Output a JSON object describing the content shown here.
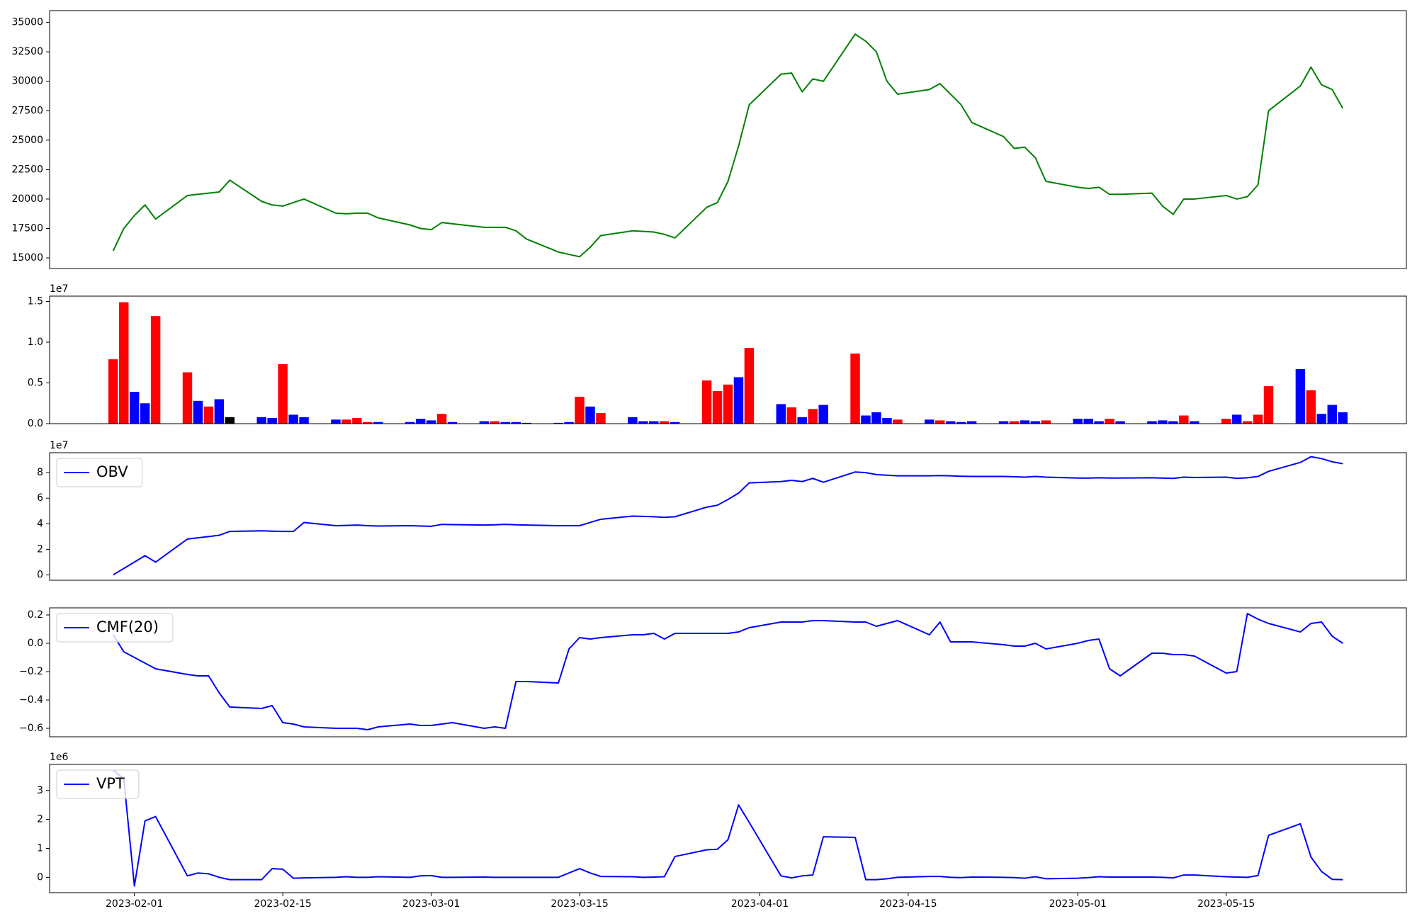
{
  "chart_data": [
    {
      "type": "line",
      "x": [
        "2023-01-30",
        "2023-01-31",
        "2023-02-01",
        "2023-02-02",
        "2023-02-03",
        "2023-02-06",
        "2023-02-07",
        "2023-02-08",
        "2023-02-09",
        "2023-02-10",
        "2023-02-13",
        "2023-02-14",
        "2023-02-15",
        "2023-02-16",
        "2023-02-17",
        "2023-02-20",
        "2023-02-21",
        "2023-02-22",
        "2023-02-23",
        "2023-02-24",
        "2023-02-27",
        "2023-02-28",
        "2023-03-01",
        "2023-03-02",
        "2023-03-03",
        "2023-03-06",
        "2023-03-07",
        "2023-03-08",
        "2023-03-09",
        "2023-03-10",
        "2023-03-13",
        "2023-03-14",
        "2023-03-15",
        "2023-03-16",
        "2023-03-17",
        "2023-03-20",
        "2023-03-21",
        "2023-03-22",
        "2023-03-23",
        "2023-03-24",
        "2023-03-27",
        "2023-03-28",
        "2023-03-29",
        "2023-03-30",
        "2023-03-31",
        "2023-04-03",
        "2023-04-04",
        "2023-04-05",
        "2023-04-06",
        "2023-04-07",
        "2023-04-10",
        "2023-04-11",
        "2023-04-12",
        "2023-04-13",
        "2023-04-14",
        "2023-04-17",
        "2023-04-18",
        "2023-04-19",
        "2023-04-20",
        "2023-04-21",
        "2023-04-24",
        "2023-04-25",
        "2023-04-26",
        "2023-04-27",
        "2023-04-28",
        "2023-05-01",
        "2023-05-02",
        "2023-05-03",
        "2023-05-04",
        "2023-05-05",
        "2023-05-08",
        "2023-05-09",
        "2023-05-10",
        "2023-05-11",
        "2023-05-12",
        "2023-05-15",
        "2023-05-16",
        "2023-05-17",
        "2023-05-18",
        "2023-05-19",
        "2023-05-22",
        "2023-05-23",
        "2023-05-24",
        "2023-05-25",
        "2023-05-26"
      ],
      "xlim": [
        "2023-01-24",
        "2023-06-01"
      ],
      "series": [
        {
          "color": "#008000",
          "values": [
            15600,
            17500,
            18600,
            19500,
            18300,
            20300,
            20400,
            20500,
            20600,
            21600,
            19800,
            19500,
            19400,
            19700,
            20000,
            18800,
            18750,
            18800,
            18800,
            18400,
            17800,
            17500,
            17400,
            18000,
            17900,
            17600,
            17600,
            17600,
            17300,
            16600,
            15500,
            15300,
            15100,
            15900,
            16900,
            17300,
            17250,
            17200,
            17000,
            16700,
            19300,
            19700,
            21500,
            24500,
            28000,
            30600,
            30700,
            29100,
            30200,
            30000,
            34000,
            33400,
            32500,
            30000,
            28900,
            29300,
            29800,
            28900,
            28000,
            26500,
            25300,
            24300,
            24400,
            23500,
            21500,
            21000,
            20900,
            21000,
            20400,
            20400,
            20500,
            19400,
            18700,
            20000,
            20000,
            20300,
            20000,
            20200,
            21200,
            27500,
            29600,
            31200,
            29700,
            29300,
            27700
          ]
        }
      ],
      "ylim": [
        14100,
        36000
      ],
      "yticks": [
        15000,
        17500,
        20000,
        22500,
        25000,
        27500,
        30000,
        32500,
        35000
      ]
    },
    {
      "type": "bar",
      "offset_label": "1e7",
      "values": [
        0.79,
        1.49,
        0.39,
        0.25,
        1.32,
        0.63,
        0.28,
        0.21,
        0.3,
        0.08,
        0.08,
        0.07,
        0.73,
        0.11,
        0.08,
        0.05,
        0.05,
        0.07,
        0.02,
        0.02,
        0.02,
        0.06,
        0.04,
        0.12,
        0.02,
        0.03,
        0.03,
        0.02,
        0.02,
        0.01,
        0.01,
        0.02,
        0.33,
        0.21,
        0.13,
        0.08,
        0.03,
        0.03,
        0.03,
        0.02,
        0.53,
        0.4,
        0.48,
        0.57,
        0.93,
        0.24,
        0.2,
        0.08,
        0.18,
        0.23,
        0.86,
        0.1,
        0.14,
        0.07,
        0.05,
        0.05,
        0.04,
        0.03,
        0.02,
        0.03,
        0.03,
        0.03,
        0.04,
        0.03,
        0.04,
        0.06,
        0.06,
        0.03,
        0.06,
        0.03,
        0.03,
        0.04,
        0.03,
        0.1,
        0.03,
        0.06,
        0.11,
        0.03,
        0.11,
        0.46,
        0.67,
        0.41,
        0.12,
        0.23,
        0.14
      ],
      "colors": [
        "red",
        "red",
        "blue",
        "blue",
        "red",
        "red",
        "blue",
        "red",
        "blue",
        "black",
        "blue",
        "blue",
        "red",
        "blue",
        "blue",
        "blue",
        "red",
        "red",
        "red",
        "blue",
        "blue",
        "blue",
        "blue",
        "red",
        "blue",
        "blue",
        "red",
        "blue",
        "blue",
        "blue",
        "blue",
        "blue",
        "red",
        "blue",
        "red",
        "blue",
        "blue",
        "blue",
        "red",
        "blue",
        "red",
        "red",
        "red",
        "blue",
        "red",
        "blue",
        "red",
        "blue",
        "red",
        "blue",
        "red",
        "blue",
        "blue",
        "blue",
        "red",
        "blue",
        "red",
        "blue",
        "blue",
        "blue",
        "blue",
        "red",
        "blue",
        "blue",
        "red",
        "blue",
        "blue",
        "blue",
        "red",
        "blue",
        "blue",
        "blue",
        "blue",
        "red",
        "blue",
        "red",
        "blue",
        "red",
        "red",
        "red",
        "blue",
        "red",
        "blue",
        "blue",
        "blue"
      ],
      "ylim": [
        0,
        1.565
      ],
      "yticks": [
        {
          "value": 0,
          "label": "0.0"
        },
        {
          "value": 0.5,
          "label": "0.5"
        },
        {
          "value": 1.0,
          "label": "1.0"
        },
        {
          "value": 1.5,
          "label": "1.5"
        }
      ]
    },
    {
      "type": "line",
      "offset_label": "1e7",
      "legend": "upper left",
      "series": [
        {
          "name": "OBV",
          "color": "#0000ff",
          "values": [
            0,
            0.5,
            1.0,
            1.5,
            1.0,
            2.8,
            2.9,
            3.0,
            3.1,
            3.4,
            3.45,
            3.42,
            3.4,
            3.4,
            4.1,
            3.85,
            3.87,
            3.9,
            3.85,
            3.82,
            3.85,
            3.82,
            3.8,
            3.95,
            3.93,
            3.9,
            3.92,
            3.95,
            3.92,
            3.9,
            3.85,
            3.85,
            3.85,
            4.1,
            4.35,
            4.6,
            4.58,
            4.55,
            4.5,
            4.55,
            5.3,
            5.45,
            5.9,
            6.4,
            7.2,
            7.3,
            7.4,
            7.3,
            7.55,
            7.25,
            8.05,
            8.0,
            7.85,
            7.8,
            7.75,
            7.75,
            7.77,
            7.75,
            7.72,
            7.7,
            7.7,
            7.68,
            7.65,
            7.7,
            7.65,
            7.58,
            7.57,
            7.6,
            7.58,
            7.58,
            7.6,
            7.57,
            7.55,
            7.65,
            7.62,
            7.65,
            7.55,
            7.6,
            7.7,
            8.1,
            8.8,
            9.25,
            9.1,
            8.85,
            8.7
          ]
        }
      ],
      "ylim": [
        -0.42,
        9.56
      ],
      "yticks": [
        0,
        2,
        4,
        6,
        8
      ]
    },
    {
      "type": "line",
      "legend": "upper left",
      "series": [
        {
          "name": "CMF(20)",
          "color": "#0000ff",
          "values": [
            0.06,
            -0.06,
            -0.1,
            -0.14,
            -0.18,
            -0.22,
            -0.23,
            -0.23,
            -0.35,
            -0.45,
            -0.46,
            -0.44,
            -0.56,
            -0.57,
            -0.59,
            -0.6,
            -0.6,
            -0.6,
            -0.61,
            -0.59,
            -0.57,
            -0.58,
            -0.58,
            -0.57,
            -0.56,
            -0.6,
            -0.59,
            -0.6,
            -0.27,
            -0.27,
            -0.28,
            -0.04,
            0.04,
            0.03,
            0.04,
            0.06,
            0.06,
            0.07,
            0.03,
            0.07,
            0.07,
            0.07,
            0.07,
            0.08,
            0.11,
            0.15,
            0.15,
            0.15,
            0.16,
            0.16,
            0.15,
            0.15,
            0.12,
            0.14,
            0.16,
            0.06,
            0.15,
            0.01,
            0.01,
            0.01,
            -0.01,
            -0.02,
            -0.02,
            0,
            -0.04,
            0,
            0.02,
            0.03,
            -0.18,
            -0.23,
            -0.07,
            -0.07,
            -0.08,
            -0.08,
            -0.09,
            -0.21,
            -0.2,
            0.21,
            0.17,
            0.14,
            0.08,
            0.14,
            0.15,
            0.05,
            0
          ]
        }
      ],
      "ylim": [
        -0.66,
        0.25
      ],
      "yticks": [
        {
          "value": -0.6,
          "label": "−0.6"
        },
        {
          "value": -0.4,
          "label": "−0.4"
        },
        {
          "value": -0.2,
          "label": "−0.2"
        },
        {
          "value": 0,
          "label": "0.0"
        },
        0.2
      ]
    },
    {
      "type": "line",
      "offset_label": "1e6",
      "legend": "upper left",
      "series": [
        {
          "name": "VPT",
          "color": "#0000ff",
          "values": [
            3.7,
            3.4,
            -0.3,
            1.95,
            2.1,
            0.05,
            0.15,
            0.12,
            0,
            -0.08,
            -0.08,
            0.3,
            0.28,
            -0.03,
            -0.02,
            0,
            0.02,
            0,
            0,
            0.02,
            0,
            0.05,
            0.06,
            0,
            0,
            0.01,
            0,
            0,
            0,
            0,
            0,
            0.15,
            0.3,
            0.15,
            0.03,
            0.02,
            0,
            0.01,
            0.02,
            0.72,
            0.95,
            0.97,
            1.3,
            2.5,
            1.9,
            0.05,
            -0.02,
            0.05,
            0.08,
            1.4,
            1.38,
            -0.08,
            -0.08,
            -0.05,
            0,
            0.03,
            0.03,
            0,
            -0.01,
            0.01,
            0,
            -0.01,
            -0.03,
            0.02,
            -0.05,
            -0.03,
            -0.01,
            0.02,
            0.01,
            0.01,
            0.01,
            0,
            -0.02,
            0.08,
            0.08,
            0.02,
            0.01,
            0,
            0.06,
            1.45,
            1.85,
            0.7,
            0.2,
            -0.07,
            -0.08
          ]
        }
      ],
      "ylim": [
        -0.53,
        3.9
      ],
      "yticks": [
        0,
        1,
        2,
        3
      ],
      "xticks": [
        "2023-02-01",
        "2023-02-15",
        "2023-03-01",
        "2023-03-15",
        "2023-04-01",
        "2023-04-15",
        "2023-05-01",
        "2023-05-15"
      ]
    }
  ]
}
